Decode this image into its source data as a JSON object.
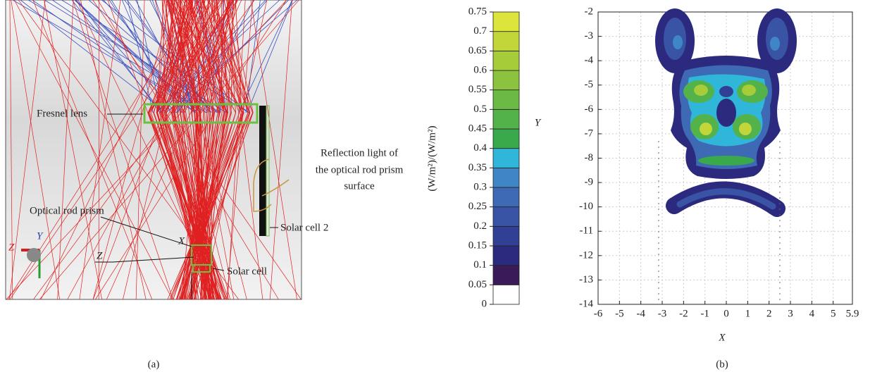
{
  "panel_a": {
    "fresnel_label": "Fresnel lens",
    "reflection_label": [
      "Reflection light of",
      "the optical rod prism",
      "surface"
    ],
    "prism_label": "Optical rod prism",
    "cell2_label": "Solar cell 2",
    "cell_label": "Solar cell",
    "x_marker": "X",
    "z_marker": "Z",
    "gizmo_z": "Z",
    "gizmo_y": "Y",
    "caption": "(a)"
  },
  "chart_data": {
    "type": "contour",
    "xlabel": "X",
    "ylabel": "Y",
    "xlim": [
      -6,
      5.9
    ],
    "xticks": [
      -6,
      -5,
      -4,
      -3,
      -2,
      -1,
      0,
      1,
      2,
      3,
      4,
      5,
      5.9
    ],
    "ylim": [
      -14,
      -2
    ],
    "yticks": [
      -14,
      -13,
      -12,
      -11,
      -10,
      -9,
      -8,
      -7,
      -6,
      -5,
      -4,
      -3,
      -2
    ],
    "grid": true,
    "caption": "(b)",
    "colorbar": {
      "label": "(W/m²)/(W/m²)",
      "lim": [
        0,
        0.75
      ],
      "ticks": [
        0,
        0.05,
        0.1,
        0.15,
        0.2,
        0.25,
        0.3,
        0.35,
        0.4,
        0.45,
        0.5,
        0.55,
        0.6,
        0.65,
        0.7,
        0.75
      ],
      "colors": [
        "#ffffff",
        "#3b1a5a",
        "#2b2a7e",
        "#313f94",
        "#3953a5",
        "#3e69b4",
        "#3f86c6",
        "#2fb6d8",
        "#3aa94b",
        "#53b24a",
        "#6bba45",
        "#8bc33f",
        "#a6cc3a",
        "#c2d63a",
        "#dde43b"
      ]
    }
  }
}
